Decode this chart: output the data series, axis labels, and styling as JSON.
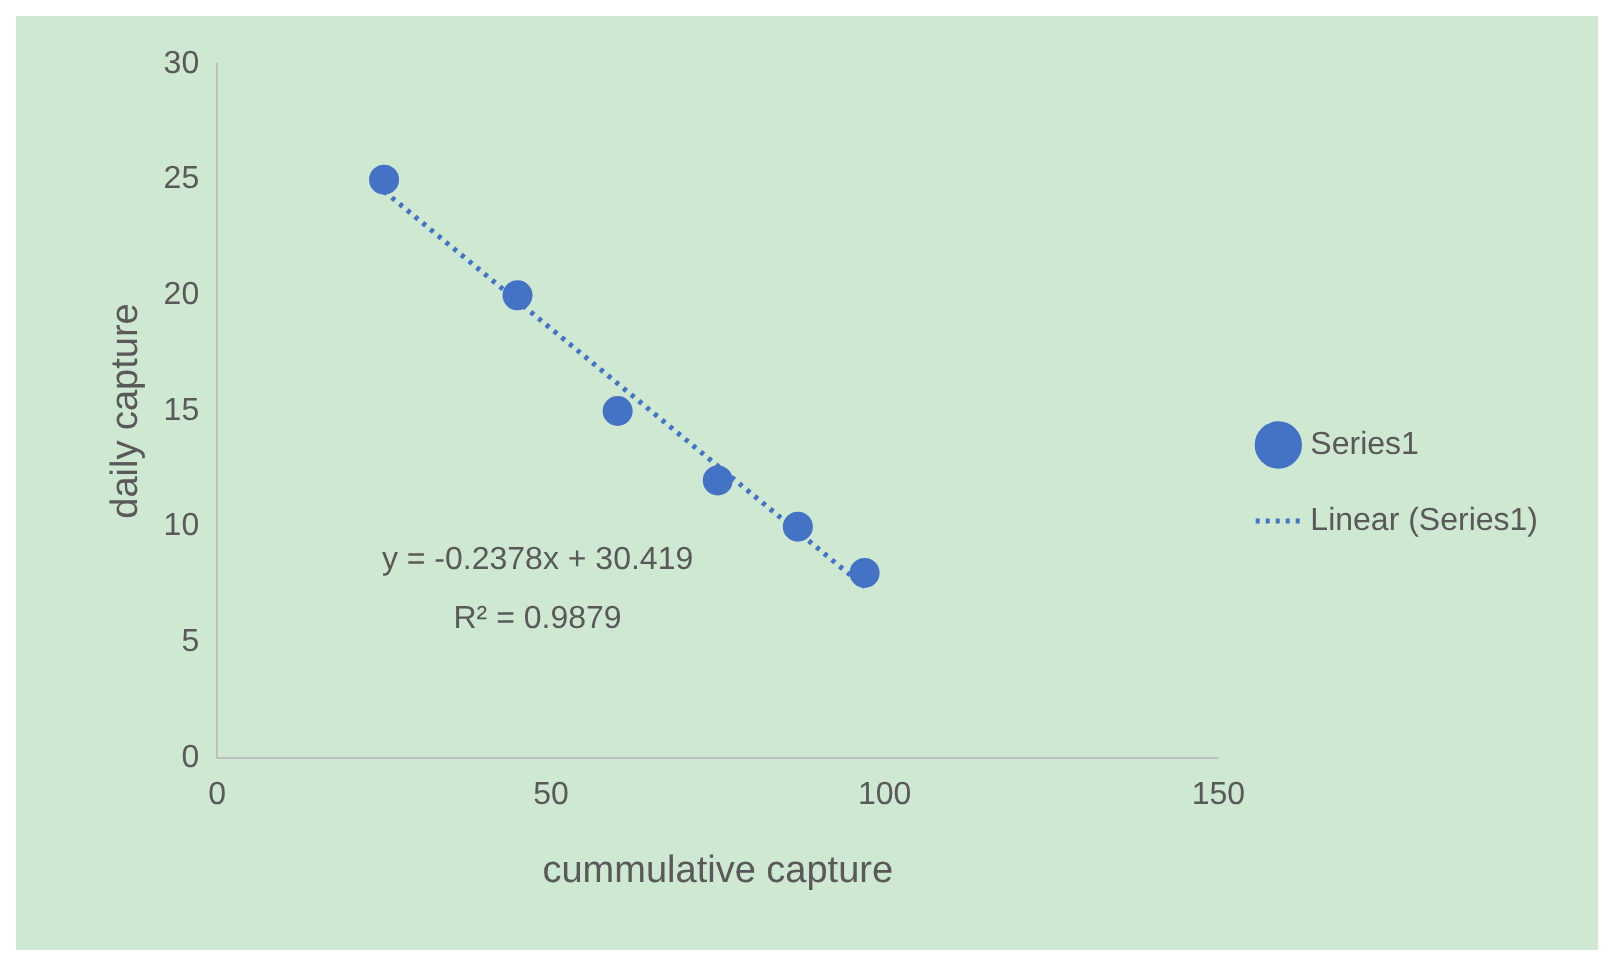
{
  "chart_data": {
    "type": "scatter",
    "xlabel": "cummulative capture",
    "ylabel": "daily capture",
    "xlim": [
      0,
      150
    ],
    "xticks": [
      0,
      50,
      100,
      150
    ],
    "ylim": [
      0,
      30
    ],
    "yticks": [
      0,
      5,
      10,
      15,
      20,
      25,
      30
    ],
    "series": [
      {
        "name": "Series1",
        "type": "scatter",
        "color": "#4472c4",
        "x": [
          25,
          45,
          60,
          75,
          87,
          97
        ],
        "values": [
          25,
          20,
          15,
          12,
          10,
          8
        ],
        "marker": "circle"
      },
      {
        "name": "Linear (Series1)",
        "type": "line",
        "color": "#4472c4",
        "x": [
          25,
          97
        ],
        "values": [
          24.5,
          7.4
        ],
        "line_style": "dotted",
        "marker": "none"
      }
    ],
    "annotations": [
      "y = -0.2378x + 30.419",
      "R² = 0.9879"
    ],
    "legend": "right",
    "grid": false
  }
}
